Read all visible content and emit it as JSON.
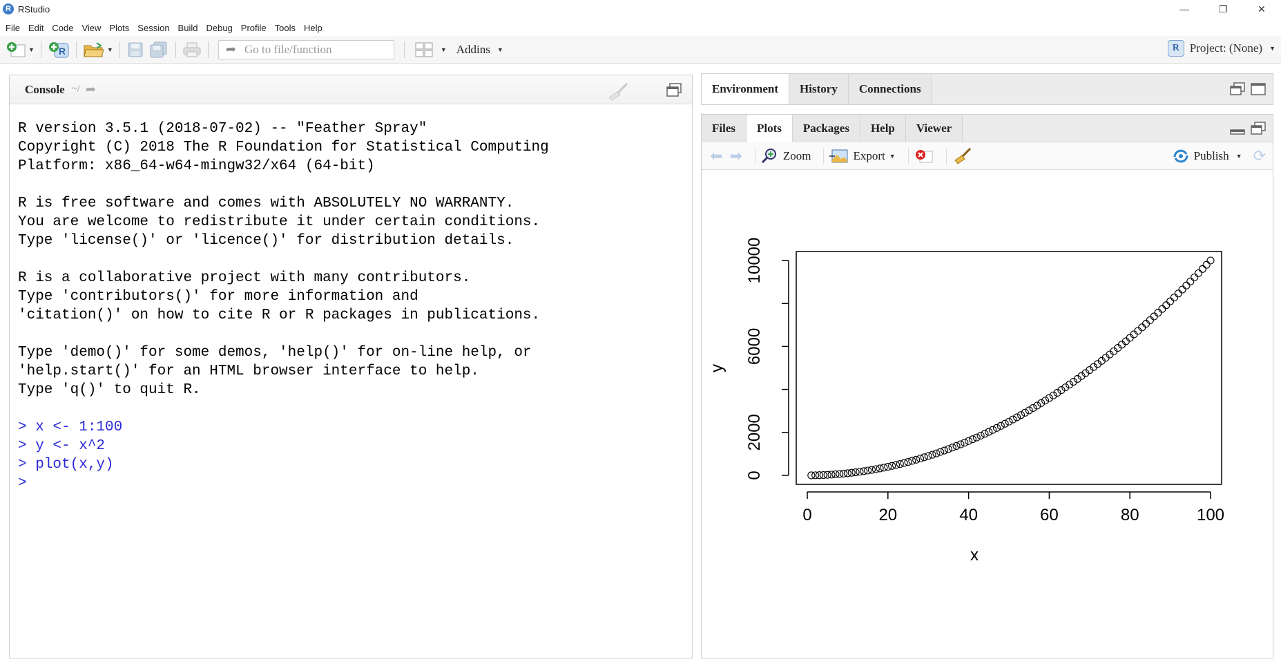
{
  "window": {
    "title": "RStudio",
    "app_icon_letter": "R",
    "controls": {
      "minimize": "—",
      "restore": "❐",
      "close": "✕"
    }
  },
  "menu": [
    "File",
    "Edit",
    "Code",
    "View",
    "Plots",
    "Session",
    "Build",
    "Debug",
    "Profile",
    "Tools",
    "Help"
  ],
  "toolbar": {
    "goto_placeholder": "Go to file/function",
    "addins_label": "Addins",
    "project_label": "Project: (None)",
    "project_icon_letter": "R"
  },
  "console": {
    "title": "Console",
    "path": "~/",
    "lines": [
      "R version 3.5.1 (2018-07-02) -- \"Feather Spray\"",
      "Copyright (C) 2018 The R Foundation for Statistical Computing",
      "Platform: x86_64-w64-mingw32/x64 (64-bit)",
      "",
      "R is free software and comes with ABSOLUTELY NO WARRANTY.",
      "You are welcome to redistribute it under certain conditions.",
      "Type 'license()' or 'licence()' for distribution details.",
      "",
      "R is a collaborative project with many contributors.",
      "Type 'contributors()' for more information and",
      "'citation()' on how to cite R or R packages in publications.",
      "",
      "Type 'demo()' for some demos, 'help()' for on-line help, or",
      "'help.start()' for an HTML browser interface to help.",
      "Type 'q()' to quit R.",
      ""
    ],
    "commands": [
      "> x <- 1:100",
      "> y <- x^2",
      "> plot(x,y)",
      ">"
    ]
  },
  "env_pane": {
    "tabs": [
      "Environment",
      "History",
      "Connections"
    ],
    "active_tab": 0
  },
  "plots_pane": {
    "tabs": [
      "Files",
      "Plots",
      "Packages",
      "Help",
      "Viewer"
    ],
    "active_tab": 1,
    "toolbar": {
      "zoom": "Zoom",
      "export": "Export",
      "publish": "Publish"
    }
  },
  "colors": {
    "console_command": "#2a2ad8",
    "point_stroke": "#000000"
  },
  "chart_data": {
    "type": "scatter",
    "xlabel": "x",
    "ylabel": "y",
    "xlim": [
      0,
      100
    ],
    "ylim": [
      0,
      10000
    ],
    "x_ticks": [
      0,
      20,
      40,
      60,
      80,
      100
    ],
    "y_ticks": [
      0,
      2000,
      6000,
      10000
    ],
    "y_minor_ticks": [
      4000,
      8000
    ],
    "x": [
      1,
      2,
      3,
      4,
      5,
      6,
      7,
      8,
      9,
      10,
      11,
      12,
      13,
      14,
      15,
      16,
      17,
      18,
      19,
      20,
      21,
      22,
      23,
      24,
      25,
      26,
      27,
      28,
      29,
      30,
      31,
      32,
      33,
      34,
      35,
      36,
      37,
      38,
      39,
      40,
      41,
      42,
      43,
      44,
      45,
      46,
      47,
      48,
      49,
      50,
      51,
      52,
      53,
      54,
      55,
      56,
      57,
      58,
      59,
      60,
      61,
      62,
      63,
      64,
      65,
      66,
      67,
      68,
      69,
      70,
      71,
      72,
      73,
      74,
      75,
      76,
      77,
      78,
      79,
      80,
      81,
      82,
      83,
      84,
      85,
      86,
      87,
      88,
      89,
      90,
      91,
      92,
      93,
      94,
      95,
      96,
      97,
      98,
      99,
      100
    ],
    "y": [
      1,
      4,
      9,
      16,
      25,
      36,
      49,
      64,
      81,
      100,
      121,
      144,
      169,
      196,
      225,
      256,
      289,
      324,
      361,
      400,
      441,
      484,
      529,
      576,
      625,
      676,
      729,
      784,
      841,
      900,
      961,
      1024,
      1089,
      1156,
      1225,
      1296,
      1369,
      1444,
      1521,
      1600,
      1681,
      1764,
      1849,
      1936,
      2025,
      2116,
      2209,
      2304,
      2401,
      2500,
      2601,
      2704,
      2809,
      2916,
      3025,
      3136,
      3249,
      3364,
      3481,
      3600,
      3721,
      3844,
      3969,
      4096,
      4225,
      4356,
      4489,
      4624,
      4761,
      4900,
      5041,
      5184,
      5329,
      5476,
      5625,
      5776,
      5929,
      6084,
      6241,
      6400,
      6561,
      6724,
      6889,
      7056,
      7225,
      7396,
      7569,
      7744,
      7921,
      8100,
      8281,
      8464,
      8649,
      8836,
      9025,
      9216,
      9409,
      9604,
      9801,
      10000
    ],
    "marker": "open-circle"
  }
}
